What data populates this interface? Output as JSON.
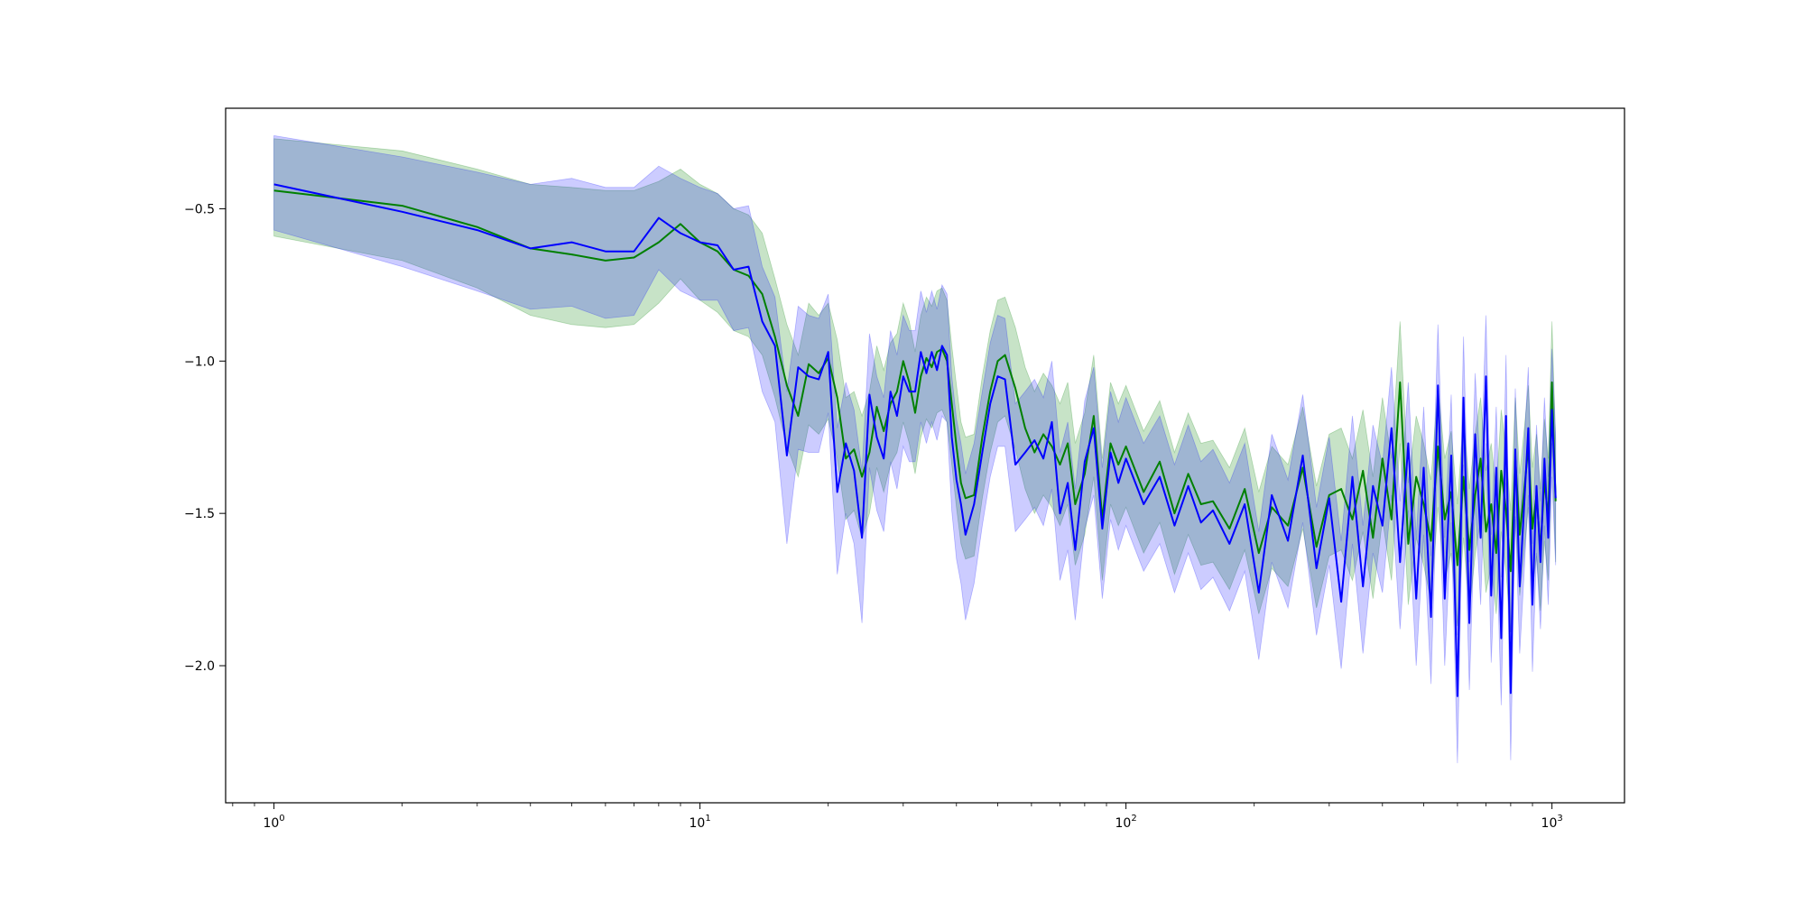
{
  "chart_data": {
    "type": "line",
    "x_scale": "log",
    "xlim": [
      0.77,
      1480
    ],
    "ylim": [
      -2.45,
      -0.17
    ],
    "grid": false,
    "x_ticks": [
      {
        "value": 1,
        "base": "10",
        "exp": "0"
      },
      {
        "value": 10,
        "base": "10",
        "exp": "1"
      },
      {
        "value": 100,
        "base": "10",
        "exp": "2"
      },
      {
        "value": 1000,
        "base": "10",
        "exp": "3"
      }
    ],
    "y_ticks": [
      {
        "value": -0.5,
        "label": "−0.5"
      },
      {
        "value": -1.0,
        "label": "−1.0"
      },
      {
        "value": -1.5,
        "label": "−1.5"
      },
      {
        "value": -2.0,
        "label": "−2.0"
      }
    ],
    "series": [
      {
        "color": "#008000",
        "band_color": "#008000",
        "band_opacity": 0.22,
        "x": [
          1,
          2,
          3,
          4,
          5,
          6,
          7,
          8,
          9,
          10,
          11,
          12,
          13,
          14,
          15,
          16,
          17,
          18,
          19,
          20,
          21,
          22,
          23,
          24,
          25,
          26,
          27,
          28,
          29,
          30,
          31,
          32,
          33,
          34,
          35,
          36,
          37,
          38,
          39,
          40,
          41,
          42,
          44,
          46,
          48,
          50,
          52,
          55,
          58,
          61,
          64,
          67,
          70,
          73,
          76,
          80,
          84,
          88,
          92,
          96,
          100,
          110,
          120,
          130,
          140,
          150,
          160,
          175,
          190,
          205,
          220,
          240,
          260,
          280,
          300,
          320,
          340,
          360,
          380,
          400,
          420,
          440,
          460,
          480,
          500,
          520,
          540,
          560,
          580,
          600,
          620,
          640,
          660,
          680,
          700,
          720,
          740,
          760,
          780,
          800,
          820,
          840,
          860,
          880,
          900,
          920,
          940,
          960,
          980,
          1000,
          1020
        ],
        "y": [
          -0.44,
          -0.49,
          -0.56,
          -0.63,
          -0.65,
          -0.67,
          -0.66,
          -0.61,
          -0.55,
          -0.61,
          -0.64,
          -0.7,
          -0.72,
          -0.78,
          -0.92,
          -1.08,
          -1.18,
          -1.01,
          -1.04,
          -0.99,
          -1.12,
          -1.32,
          -1.29,
          -1.38,
          -1.3,
          -1.15,
          -1.23,
          -1.14,
          -1.1,
          -1.0,
          -1.07,
          -1.17,
          -1.05,
          -0.99,
          -1.02,
          -0.97,
          -0.96,
          -1.0,
          -1.14,
          -1.28,
          -1.4,
          -1.45,
          -1.44,
          -1.25,
          -1.1,
          -1.0,
          -0.98,
          -1.09,
          -1.22,
          -1.3,
          -1.24,
          -1.28,
          -1.34,
          -1.27,
          -1.47,
          -1.37,
          -1.18,
          -1.52,
          -1.27,
          -1.34,
          -1.28,
          -1.43,
          -1.33,
          -1.5,
          -1.37,
          -1.47,
          -1.46,
          -1.55,
          -1.42,
          -1.63,
          -1.48,
          -1.54,
          -1.35,
          -1.61,
          -1.44,
          -1.42,
          -1.52,
          -1.36,
          -1.58,
          -1.32,
          -1.52,
          -1.07,
          -1.6,
          -1.38,
          -1.47,
          -1.59,
          -1.28,
          -1.52,
          -1.43,
          -1.67,
          -1.38,
          -1.62,
          -1.44,
          -1.32,
          -1.56,
          -1.47,
          -1.63,
          -1.36,
          -1.49,
          -1.69,
          -1.32,
          -1.57,
          -1.43,
          -1.28,
          -1.55,
          -1.44,
          -1.62,
          -1.39,
          -1.52,
          -1.07,
          -1.46
        ],
        "upper": [
          -0.27,
          -0.31,
          -0.37,
          -0.42,
          -0.43,
          -0.44,
          -0.44,
          -0.41,
          -0.37,
          -0.42,
          -0.45,
          -0.5,
          -0.52,
          -0.58,
          -0.73,
          -0.88,
          -0.98,
          -0.81,
          -0.85,
          -0.81,
          -0.93,
          -1.12,
          -1.1,
          -1.18,
          -1.1,
          -0.95,
          -1.03,
          -0.94,
          -0.91,
          -0.81,
          -0.87,
          -0.97,
          -0.85,
          -0.79,
          -0.82,
          -0.77,
          -0.76,
          -0.8,
          -0.95,
          -1.08,
          -1.2,
          -1.25,
          -1.24,
          -1.05,
          -0.9,
          -0.8,
          -0.79,
          -0.89,
          -1.02,
          -1.1,
          -1.04,
          -1.08,
          -1.14,
          -1.07,
          -1.27,
          -1.17,
          -0.98,
          -1.32,
          -1.07,
          -1.14,
          -1.08,
          -1.23,
          -1.13,
          -1.3,
          -1.17,
          -1.27,
          -1.26,
          -1.35,
          -1.22,
          -1.43,
          -1.28,
          -1.34,
          -1.15,
          -1.41,
          -1.24,
          -1.22,
          -1.32,
          -1.16,
          -1.38,
          -1.12,
          -1.32,
          -0.87,
          -1.4,
          -1.18,
          -1.27,
          -1.39,
          -1.08,
          -1.32,
          -1.23,
          -1.47,
          -1.18,
          -1.42,
          -1.24,
          -1.12,
          -1.36,
          -1.27,
          -1.43,
          -1.16,
          -1.29,
          -1.49,
          -1.12,
          -1.37,
          -1.23,
          -1.08,
          -1.35,
          -1.24,
          -1.42,
          -1.19,
          -1.32,
          -0.87,
          -1.26
        ],
        "lower": [
          -0.59,
          -0.67,
          -0.76,
          -0.85,
          -0.88,
          -0.89,
          -0.88,
          -0.81,
          -0.73,
          -0.8,
          -0.84,
          -0.9,
          -0.92,
          -0.98,
          -1.12,
          -1.28,
          -1.38,
          -1.21,
          -1.24,
          -1.19,
          -1.32,
          -1.52,
          -1.49,
          -1.58,
          -1.5,
          -1.35,
          -1.43,
          -1.34,
          -1.3,
          -1.2,
          -1.27,
          -1.37,
          -1.25,
          -1.19,
          -1.22,
          -1.17,
          -1.16,
          -1.2,
          -1.34,
          -1.48,
          -1.6,
          -1.65,
          -1.64,
          -1.45,
          -1.3,
          -1.2,
          -1.18,
          -1.29,
          -1.42,
          -1.5,
          -1.44,
          -1.48,
          -1.54,
          -1.47,
          -1.67,
          -1.57,
          -1.38,
          -1.72,
          -1.47,
          -1.54,
          -1.48,
          -1.63,
          -1.53,
          -1.7,
          -1.57,
          -1.67,
          -1.66,
          -1.75,
          -1.62,
          -1.83,
          -1.68,
          -1.74,
          -1.55,
          -1.81,
          -1.64,
          -1.62,
          -1.72,
          -1.56,
          -1.78,
          -1.52,
          -1.72,
          -1.27,
          -1.8,
          -1.58,
          -1.67,
          -1.79,
          -1.48,
          -1.72,
          -1.63,
          -1.87,
          -1.58,
          -1.82,
          -1.64,
          -1.52,
          -1.76,
          -1.67,
          -1.83,
          -1.56,
          -1.69,
          -1.89,
          -1.52,
          -1.77,
          -1.63,
          -1.48,
          -1.75,
          -1.64,
          -1.82,
          -1.59,
          -1.72,
          -1.27,
          -1.66
        ]
      },
      {
        "color": "#0000ff",
        "band_color": "#0000ff",
        "band_opacity": 0.2,
        "x": [
          1,
          2,
          3,
          4,
          5,
          6,
          7,
          8,
          9,
          10,
          11,
          12,
          13,
          14,
          15,
          16,
          17,
          18,
          19,
          20,
          21,
          22,
          23,
          24,
          25,
          26,
          27,
          28,
          29,
          30,
          31,
          32,
          33,
          34,
          35,
          36,
          37,
          38,
          39,
          40,
          41,
          42,
          44,
          46,
          48,
          50,
          52,
          55,
          58,
          61,
          64,
          67,
          70,
          73,
          76,
          80,
          84,
          88,
          92,
          96,
          100,
          110,
          120,
          130,
          140,
          150,
          160,
          175,
          190,
          205,
          220,
          240,
          260,
          280,
          300,
          320,
          340,
          360,
          380,
          400,
          420,
          440,
          460,
          480,
          500,
          520,
          540,
          560,
          580,
          600,
          620,
          640,
          660,
          680,
          700,
          720,
          740,
          760,
          780,
          800,
          820,
          840,
          860,
          880,
          900,
          920,
          940,
          960,
          980,
          1000,
          1020
        ],
        "y": [
          -0.42,
          -0.51,
          -0.57,
          -0.63,
          -0.61,
          -0.64,
          -0.64,
          -0.53,
          -0.58,
          -0.61,
          -0.62,
          -0.7,
          -0.69,
          -0.87,
          -0.95,
          -1.31,
          -1.02,
          -1.05,
          -1.06,
          -0.97,
          -1.43,
          -1.27,
          -1.36,
          -1.58,
          -1.11,
          -1.25,
          -1.32,
          -1.1,
          -1.18,
          -1.05,
          -1.1,
          -1.1,
          -0.97,
          -1.04,
          -0.97,
          -1.03,
          -0.95,
          -0.98,
          -1.25,
          -1.39,
          -1.47,
          -1.57,
          -1.47,
          -1.3,
          -1.14,
          -1.05,
          -1.06,
          -1.34,
          -1.3,
          -1.26,
          -1.32,
          -1.2,
          -1.5,
          -1.4,
          -1.62,
          -1.33,
          -1.22,
          -1.55,
          -1.3,
          -1.4,
          -1.32,
          -1.47,
          -1.38,
          -1.54,
          -1.41,
          -1.53,
          -1.49,
          -1.6,
          -1.47,
          -1.76,
          -1.44,
          -1.59,
          -1.31,
          -1.68,
          -1.45,
          -1.79,
          -1.38,
          -1.74,
          -1.41,
          -1.54,
          -1.22,
          -1.66,
          -1.27,
          -1.78,
          -1.35,
          -1.84,
          -1.08,
          -1.78,
          -1.31,
          -2.1,
          -1.12,
          -1.86,
          -1.24,
          -1.58,
          -1.05,
          -1.77,
          -1.35,
          -1.91,
          -1.18,
          -2.09,
          -1.29,
          -1.74,
          -1.48,
          -1.22,
          -1.8,
          -1.41,
          -1.66,
          -1.32,
          -1.58,
          -1.16,
          -1.45
        ],
        "upper": [
          -0.26,
          -0.33,
          -0.38,
          -0.42,
          -0.4,
          -0.43,
          -0.43,
          -0.36,
          -0.4,
          -0.43,
          -0.45,
          -0.5,
          -0.49,
          -0.69,
          -0.79,
          -1.1,
          -0.82,
          -0.85,
          -0.86,
          -0.78,
          -1.22,
          -1.07,
          -1.16,
          -1.36,
          -0.91,
          -1.05,
          -1.12,
          -0.9,
          -0.98,
          -0.85,
          -0.9,
          -0.9,
          -0.77,
          -0.84,
          -0.77,
          -0.83,
          -0.75,
          -0.78,
          -1.05,
          -1.19,
          -1.27,
          -1.37,
          -1.27,
          -1.1,
          -0.94,
          -0.85,
          -0.86,
          -1.14,
          -1.1,
          -1.06,
          -1.12,
          -1.0,
          -1.3,
          -1.2,
          -1.42,
          -1.13,
          -1.02,
          -1.35,
          -1.1,
          -1.2,
          -1.12,
          -1.27,
          -1.18,
          -1.34,
          -1.21,
          -1.33,
          -1.29,
          -1.4,
          -1.27,
          -1.56,
          -1.24,
          -1.39,
          -1.11,
          -1.48,
          -1.25,
          -1.59,
          -1.18,
          -1.54,
          -1.21,
          -1.34,
          -1.02,
          -1.46,
          -1.07,
          -1.58,
          -1.15,
          -1.64,
          -0.88,
          -1.58,
          -1.11,
          -1.9,
          -0.92,
          -1.66,
          -1.04,
          -1.38,
          -0.85,
          -1.57,
          -1.15,
          -1.71,
          -0.98,
          -1.89,
          -1.09,
          -1.54,
          -1.28,
          -1.02,
          -1.6,
          -1.21,
          -1.46,
          -1.12,
          -1.38,
          -0.96,
          -1.25
        ],
        "lower": [
          -0.57,
          -0.69,
          -0.77,
          -0.83,
          -0.82,
          -0.86,
          -0.85,
          -0.7,
          -0.77,
          -0.8,
          -0.8,
          -0.9,
          -0.89,
          -1.1,
          -1.2,
          -1.6,
          -1.29,
          -1.3,
          -1.3,
          -1.17,
          -1.7,
          -1.5,
          -1.6,
          -1.86,
          -1.35,
          -1.49,
          -1.56,
          -1.33,
          -1.42,
          -1.28,
          -1.33,
          -1.33,
          -1.2,
          -1.27,
          -1.2,
          -1.26,
          -1.18,
          -1.2,
          -1.49,
          -1.65,
          -1.73,
          -1.85,
          -1.73,
          -1.54,
          -1.38,
          -1.28,
          -1.28,
          -1.56,
          -1.52,
          -1.48,
          -1.54,
          -1.42,
          -1.72,
          -1.62,
          -1.85,
          -1.55,
          -1.44,
          -1.78,
          -1.52,
          -1.62,
          -1.54,
          -1.69,
          -1.6,
          -1.76,
          -1.63,
          -1.75,
          -1.71,
          -1.82,
          -1.69,
          -1.98,
          -1.66,
          -1.81,
          -1.53,
          -1.9,
          -1.67,
          -2.01,
          -1.6,
          -1.96,
          -1.63,
          -1.76,
          -1.44,
          -1.88,
          -1.49,
          -2.0,
          -1.57,
          -2.06,
          -1.3,
          -2.0,
          -1.53,
          -2.32,
          -1.34,
          -2.08,
          -1.46,
          -1.8,
          -1.27,
          -1.99,
          -1.57,
          -2.13,
          -1.4,
          -2.31,
          -1.51,
          -1.96,
          -1.7,
          -1.44,
          -2.02,
          -1.63,
          -1.88,
          -1.54,
          -1.8,
          -1.38,
          -1.67
        ]
      }
    ]
  }
}
